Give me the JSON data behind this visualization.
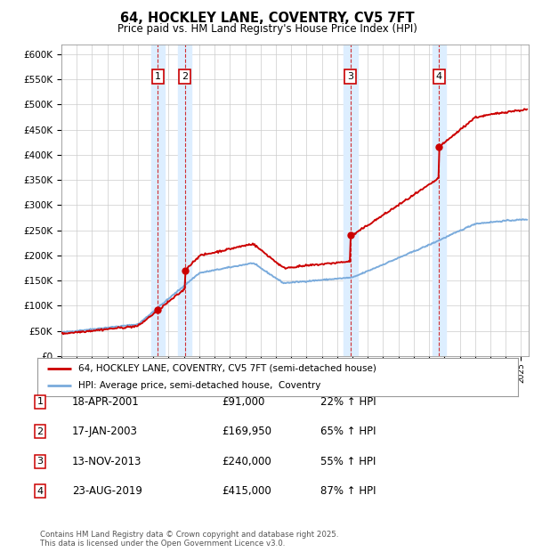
{
  "title": "64, HOCKLEY LANE, COVENTRY, CV5 7FT",
  "subtitle": "Price paid vs. HM Land Registry's House Price Index (HPI)",
  "background_color": "#ffffff",
  "plot_bg_color": "#ffffff",
  "grid_color": "#cccccc",
  "ylim": [
    0,
    620000
  ],
  "yticks": [
    0,
    50000,
    100000,
    150000,
    200000,
    250000,
    300000,
    350000,
    400000,
    450000,
    500000,
    550000,
    600000
  ],
  "ytick_labels": [
    "£0",
    "£50K",
    "£100K",
    "£150K",
    "£200K",
    "£250K",
    "£300K",
    "£350K",
    "£400K",
    "£450K",
    "£500K",
    "£550K",
    "£600K"
  ],
  "sale_dates": [
    2001.3,
    2003.05,
    2013.87,
    2019.65
  ],
  "sale_prices": [
    91000,
    169950,
    240000,
    415000
  ],
  "sale_labels": [
    "1",
    "2",
    "3",
    "4"
  ],
  "sale_color": "#cc0000",
  "hpi_color": "#7aabdc",
  "shade_color": "#ddeeff",
  "legend_entries": [
    "64, HOCKLEY LANE, COVENTRY, CV5 7FT (semi-detached house)",
    "HPI: Average price, semi-detached house,  Coventry"
  ],
  "table_data": [
    [
      "1",
      "18-APR-2001",
      "£91,000",
      "22% ↑ HPI"
    ],
    [
      "2",
      "17-JAN-2003",
      "£169,950",
      "65% ↑ HPI"
    ],
    [
      "3",
      "13-NOV-2013",
      "£240,000",
      "55% ↑ HPI"
    ],
    [
      "4",
      "23-AUG-2019",
      "£415,000",
      "87% ↑ HPI"
    ]
  ],
  "footnote": "Contains HM Land Registry data © Crown copyright and database right 2025.\nThis data is licensed under the Open Government Licence v3.0.",
  "xmin": 1995,
  "xmax": 2025.5
}
